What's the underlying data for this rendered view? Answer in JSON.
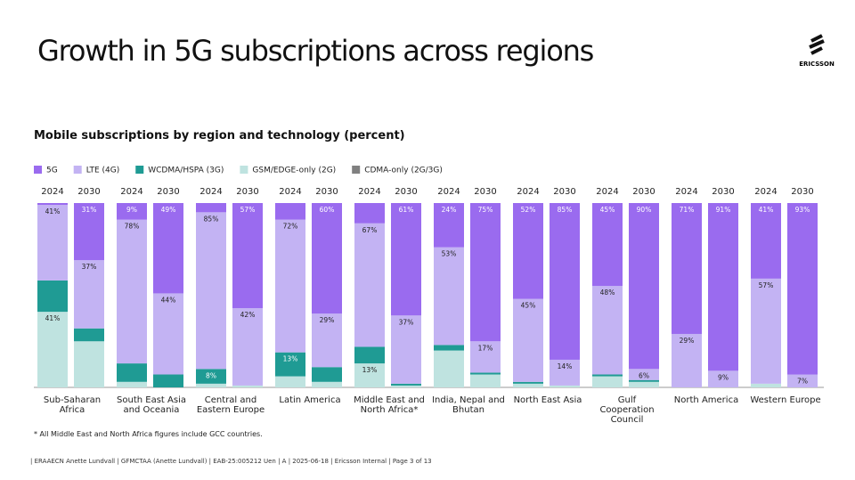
{
  "page": {
    "title": "Growth in 5G subscriptions across regions",
    "logo": "ERICSSON",
    "footnote": "* All Middle East and North Africa figures include GCC countries.",
    "footer": "| ERAAECN Anette Lundvall | GFMCTAA (Anette Lundvall) | EAB-25:005212 Uen | A | 2025-06-18 | Ericsson Internal | Page 3 of 13"
  },
  "chart_data": {
    "type": "stacked-bar",
    "title": "Mobile subscriptions by region and technology (percent)",
    "groups": [
      "Sub-Saharan Africa",
      "South East Asia and Oceania",
      "Central and Eastern Europe",
      "Latin America",
      "Middle East and North Africa*",
      "India, Nepal and Bhutan",
      "North East Asia",
      "Gulf Cooperation Council",
      "North America",
      "Western Europe"
    ],
    "categories": [
      "2024",
      "2030",
      "2024",
      "2030",
      "2024",
      "2030",
      "2024",
      "2030",
      "2024",
      "2030",
      "2024",
      "2030",
      "2024",
      "2030",
      "2024",
      "2030",
      "2024",
      "2030",
      "2024",
      "2030"
    ],
    "ylim": [
      0,
      100
    ],
    "series": [
      {
        "name": "GSM/EDGE-only (2G)",
        "color": "#bfe3e0",
        "values": [
          41,
          25,
          3,
          0,
          2,
          1,
          6,
          3,
          13,
          1,
          20,
          7,
          2,
          1,
          6,
          3,
          0,
          0,
          2,
          0
        ],
        "value_labels": [
          "41%",
          null,
          null,
          null,
          null,
          null,
          null,
          null,
          "13%",
          null,
          null,
          null,
          null,
          null,
          null,
          null,
          null,
          null,
          null,
          null
        ]
      },
      {
        "name": "WCDMA/HSPA (3G)",
        "color": "#1f9b94",
        "values": [
          17,
          7,
          10,
          7,
          8,
          0,
          13,
          8,
          9,
          1,
          3,
          1,
          1,
          0,
          1,
          1,
          0,
          0,
          0,
          0
        ],
        "value_labels": [
          null,
          null,
          null,
          null,
          "8%",
          null,
          "13%",
          null,
          null,
          null,
          null,
          null,
          null,
          null,
          null,
          null,
          null,
          null,
          null,
          null
        ]
      },
      {
        "name": "LTE (4G)",
        "color": "#c3b3f3",
        "values": [
          41,
          37,
          78,
          44,
          85,
          42,
          72,
          29,
          67,
          37,
          53,
          17,
          45,
          14,
          48,
          6,
          29,
          9,
          57,
          7
        ],
        "value_labels": [
          "41%",
          "37%",
          "78%",
          "44%",
          "85%",
          "42%",
          "72%",
          "29%",
          "67%",
          "37%",
          "53%",
          "17%",
          "45%",
          "14%",
          "48%",
          "6%",
          "29%",
          "9%",
          "57%",
          "7%"
        ]
      },
      {
        "name": "CDMA-only (2G/3G)",
        "color": "#808080",
        "values": [
          0,
          0,
          0,
          0,
          0,
          0,
          0,
          0,
          0,
          0,
          0,
          0,
          0,
          0,
          0,
          0,
          0,
          0,
          0,
          0
        ]
      },
      {
        "name": "5G",
        "color": "#9a6bef",
        "values": [
          1,
          31,
          9,
          49,
          5,
          57,
          9,
          60,
          11,
          61,
          24,
          75,
          52,
          85,
          45,
          90,
          71,
          91,
          41,
          93
        ],
        "value_labels": [
          null,
          "31%",
          "9%",
          "49%",
          null,
          "57%",
          null,
          "60%",
          null,
          "61%",
          "24%",
          "75%",
          "52%",
          "85%",
          "45%",
          "90%",
          "71%",
          "91%",
          "41%",
          "93%"
        ]
      }
    ],
    "legend_order": [
      "5G",
      "LTE (4G)",
      "WCDMA/HSPA (3G)",
      "GSM/EDGE-only (2G)",
      "CDMA-only (2G/3G)"
    ]
  }
}
